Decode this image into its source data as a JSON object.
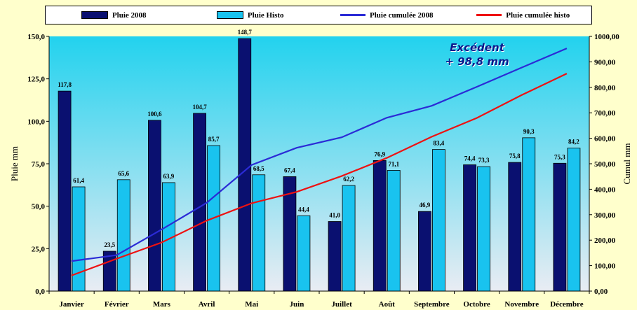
{
  "chart_data": {
    "type": "bar",
    "categories": [
      "Janvier",
      "Février",
      "Mars",
      "Avril",
      "Mai",
      "Juin",
      "Juillet",
      "Août",
      "Septembre",
      "Octobre",
      "Novembre",
      "Décembre"
    ],
    "bar_series": [
      {
        "name": "Pluie 2008",
        "color": "#0a1070",
        "values": [
          117.8,
          23.5,
          100.6,
          104.7,
          148.7,
          67.4,
          41.0,
          76.9,
          46.9,
          74.4,
          75.8,
          75.3
        ],
        "labels": [
          "117,8",
          "23,5",
          "100,6",
          "104,7",
          "148,7",
          "67,4",
          "41,0",
          "76,9",
          "46,9",
          "74,4",
          "75,8",
          "75,3"
        ]
      },
      {
        "name": "Pluie Histo",
        "color": "#19c3ef",
        "values": [
          61.4,
          65.6,
          63.9,
          85.7,
          68.5,
          44.4,
          62.2,
          71.1,
          83.4,
          73.3,
          90.3,
          84.2
        ],
        "labels": [
          "61,4",
          "65,6",
          "63,9",
          "85,7",
          "68,5",
          "44,4",
          "62,2",
          "71,1",
          "83,4",
          "73,3",
          "90,3",
          "84,2"
        ]
      }
    ],
    "line_series": [
      {
        "name": "Pluie cumulée 2008",
        "color": "#2b2bd6",
        "values": [
          117.8,
          141.3,
          241.9,
          346.6,
          495.3,
          562.7,
          603.7,
          680.6,
          727.5,
          801.9,
          877.7,
          953.0
        ]
      },
      {
        "name": "Pluie cumulée histo",
        "color": "#ee1111",
        "values": [
          61.4,
          127.0,
          190.9,
          276.6,
          345.1,
          389.5,
          451.7,
          522.8,
          606.2,
          679.5,
          769.8,
          854.0
        ]
      }
    ],
    "ylabel": "Pluie mm",
    "y2label": "Cumul mm",
    "ylim": [
      0,
      150
    ],
    "y2lim": [
      0,
      1000
    ],
    "yticks": [
      "0,0",
      "25,0",
      "50,0",
      "75,0",
      "100,0",
      "125,0",
      "150,0"
    ],
    "y2ticks": [
      "0,00",
      "100,00",
      "200,00",
      "300,00",
      "400,00",
      "500,00",
      "600,00",
      "700,00",
      "800,00",
      "900,00",
      "1000,00"
    ],
    "annotation": [
      "Excédent",
      "+ 98,8 mm"
    ],
    "legend_position": "top",
    "grid": false
  }
}
